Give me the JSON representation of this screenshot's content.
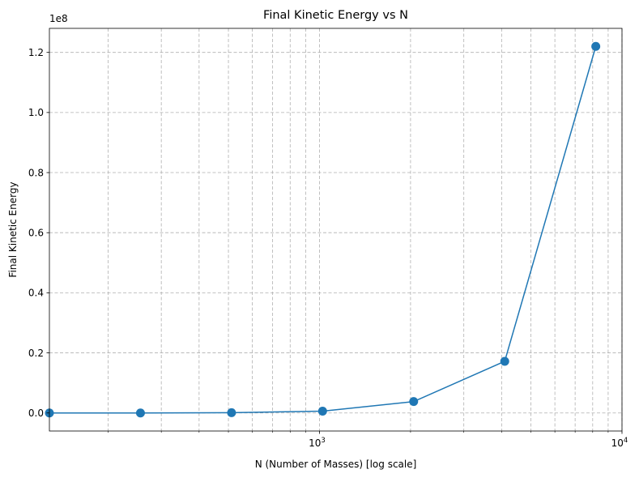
{
  "chart_data": {
    "type": "line",
    "title": "Final Kinetic Energy vs N",
    "xlabel": "N (Number of Masses) [log scale]",
    "ylabel": "Final Kinetic Energy",
    "xscale": "log",
    "xlim": [
      128,
      10000
    ],
    "ylim": [
      -6000000,
      128000000
    ],
    "x_ticks": [
      {
        "value": 1000,
        "base": "10",
        "exp": "3"
      },
      {
        "value": 10000,
        "base": "10",
        "exp": "4"
      }
    ],
    "y_ticks": [
      {
        "value": 0,
        "label": "0.0"
      },
      {
        "value": 20000000,
        "label": "0.2"
      },
      {
        "value": 40000000,
        "label": "0.4"
      },
      {
        "value": 60000000,
        "label": "0.6"
      },
      {
        "value": 80000000,
        "label": "0.8"
      },
      {
        "value": 100000000,
        "label": "1.0"
      },
      {
        "value": 120000000,
        "label": "1.2"
      }
    ],
    "y_offset_label": "1e8",
    "grid": true,
    "grid_style": "dashed",
    "series": [
      {
        "color": "#1f77b4",
        "marker": "circle",
        "x": [
          128,
          256,
          512,
          1024,
          2048,
          4096,
          8192
        ],
        "y": [
          0,
          0,
          100000,
          600000,
          3800000,
          17200000,
          122000000
        ]
      }
    ]
  }
}
